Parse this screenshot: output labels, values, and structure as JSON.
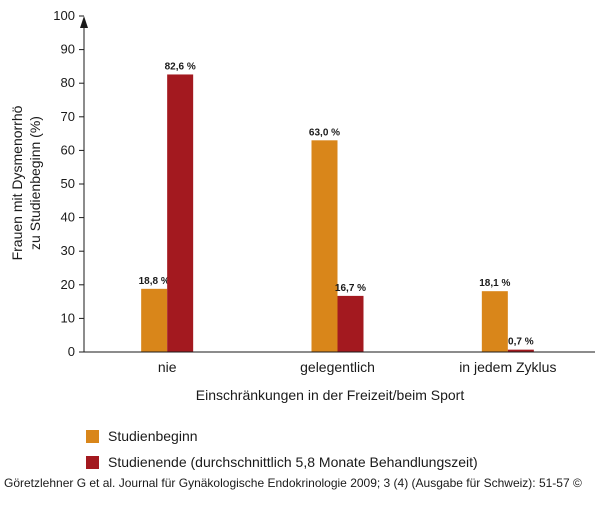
{
  "chart_data": {
    "type": "bar",
    "categories": [
      "nie",
      "gelegentlich",
      "in jedem Zyklus"
    ],
    "series": [
      {
        "name": "Studienbeginn",
        "values": [
          18.8,
          63.0,
          18.1
        ],
        "labels": [
          "18,8 %",
          "63,0 %",
          "18,1 %"
        ],
        "color": "#d9861a"
      },
      {
        "name": "Studienende (durchschnittlich 5,8 Monate Behandlungszeit)",
        "values": [
          82.6,
          16.7,
          0.7
        ],
        "labels": [
          "82,6 %",
          "16,7 %",
          "0,7 %"
        ],
        "color": "#a3191f"
      }
    ],
    "ylim": [
      0,
      100
    ],
    "yticks": [
      0,
      10,
      20,
      30,
      40,
      50,
      60,
      70,
      80,
      90,
      100
    ],
    "ylabel_line1": "Frauen mit Dysmenorrhö",
    "ylabel_line2": "zu Studienbeginn (%)",
    "xlabel": "Einschränkungen in der Freizeit/beim Sport",
    "grid": false,
    "legend_position": "bottom-left"
  },
  "citation": "Göretzlehner G  et al. Journal für Gynäkologische Endokrinologie 2009; 3 (4) (Ausgabe für Schweiz): 51-57 ©"
}
